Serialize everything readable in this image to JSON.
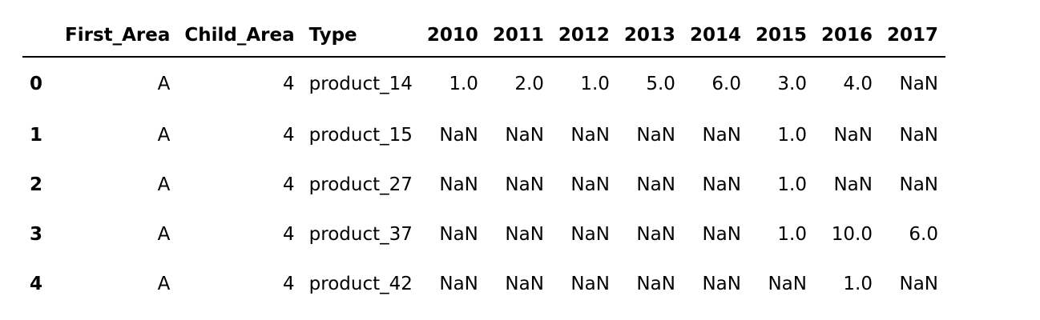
{
  "table": {
    "columns": [
      "",
      "First_Area",
      "Child_Area",
      "Type",
      "2010",
      "2011",
      "2012",
      "2013",
      "2014",
      "2015",
      "2016",
      "2017"
    ],
    "rows": [
      {
        "index": "0",
        "first_area": "A",
        "child_area": "4",
        "type": "product_14",
        "y2010": "1.0",
        "y2011": "2.0",
        "y2012": "1.0",
        "y2013": "5.0",
        "y2014": "6.0",
        "y2015": "3.0",
        "y2016": "4.0",
        "y2017": "NaN"
      },
      {
        "index": "1",
        "first_area": "A",
        "child_area": "4",
        "type": "product_15",
        "y2010": "NaN",
        "y2011": "NaN",
        "y2012": "NaN",
        "y2013": "NaN",
        "y2014": "NaN",
        "y2015": "1.0",
        "y2016": "NaN",
        "y2017": "NaN"
      },
      {
        "index": "2",
        "first_area": "A",
        "child_area": "4",
        "type": "product_27",
        "y2010": "NaN",
        "y2011": "NaN",
        "y2012": "NaN",
        "y2013": "NaN",
        "y2014": "NaN",
        "y2015": "1.0",
        "y2016": "NaN",
        "y2017": "NaN"
      },
      {
        "index": "3",
        "first_area": "A",
        "child_area": "4",
        "type": "product_37",
        "y2010": "NaN",
        "y2011": "NaN",
        "y2012": "NaN",
        "y2013": "NaN",
        "y2014": "NaN",
        "y2015": "1.0",
        "y2016": "10.0",
        "y2017": "6.0"
      },
      {
        "index": "4",
        "first_area": "A",
        "child_area": "4",
        "type": "product_42",
        "y2010": "NaN",
        "y2011": "NaN",
        "y2012": "NaN",
        "y2013": "NaN",
        "y2014": "NaN",
        "y2015": "NaN",
        "y2016": "1.0",
        "y2017": "NaN"
      }
    ]
  }
}
